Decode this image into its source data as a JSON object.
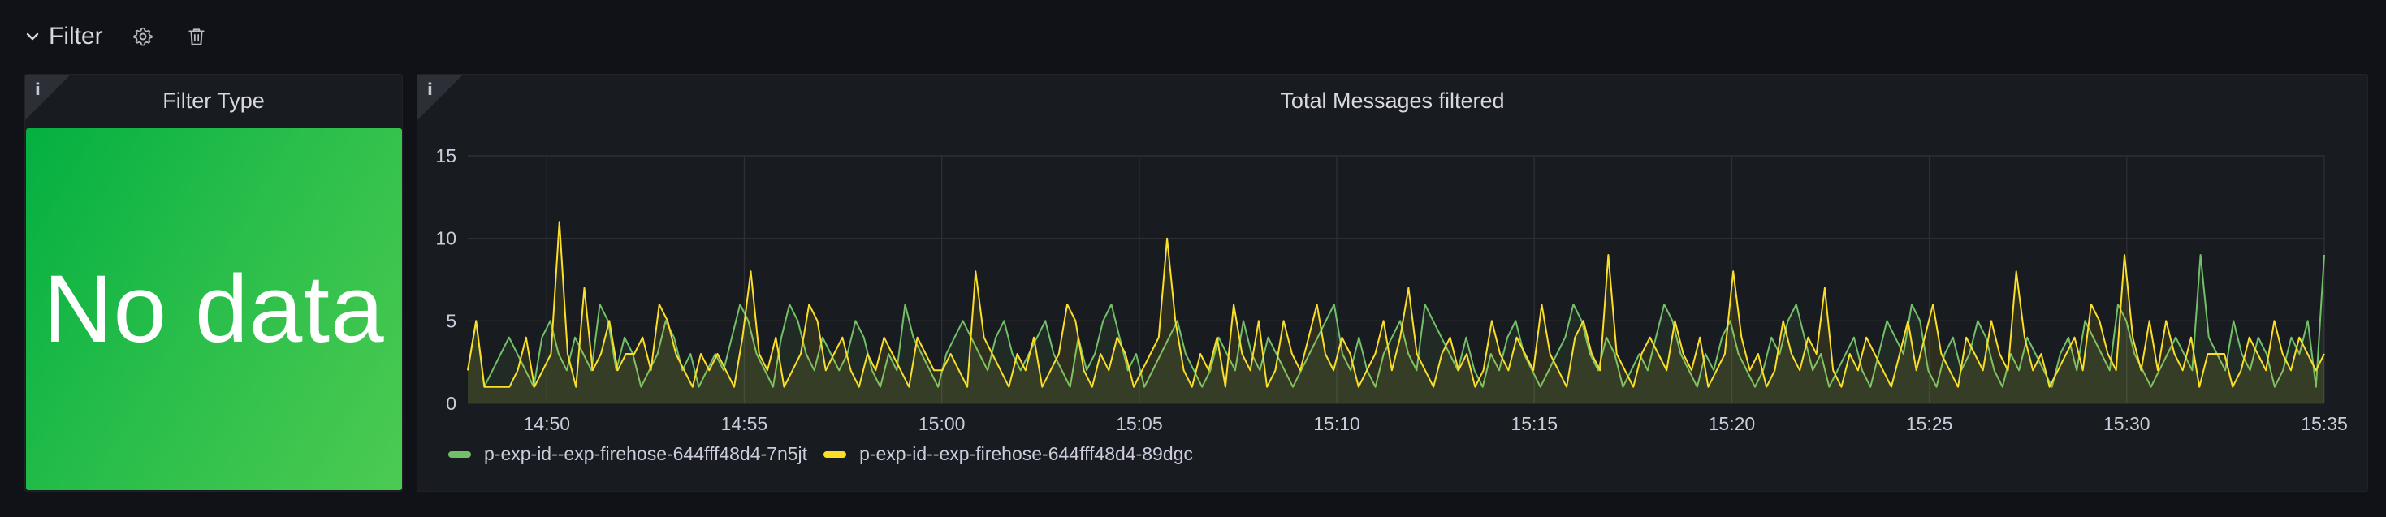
{
  "row": {
    "title": "Filter",
    "actions": [
      "gear-icon",
      "trash-icon"
    ]
  },
  "panels": {
    "filter_type": {
      "title": "Filter Type",
      "info": "i",
      "value": "No data",
      "color": "#37b94a"
    },
    "messages": {
      "title": "Total Messages filtered",
      "info": "i"
    }
  },
  "chart_data": {
    "type": "line",
    "title": "Total Messages filtered",
    "xlabel": "",
    "ylabel": "",
    "ylim": [
      0,
      15
    ],
    "yticks": [
      "0",
      "5",
      "10",
      "15"
    ],
    "xticks": [
      "14:50",
      "14:55",
      "15:00",
      "15:05",
      "15:10",
      "15:15",
      "15:20",
      "15:25",
      "15:30",
      "15:35"
    ],
    "xrange": [
      "14:48",
      "15:35"
    ],
    "grid": true,
    "legend_position": "bottom-left",
    "series": [
      {
        "name": "p-exp-id--exp-firehose-644fff48d4-7n5jt",
        "color": "#73bf69",
        "values": [
          2,
          5,
          1,
          2,
          3,
          4,
          3,
          2,
          1,
          4,
          5,
          3,
          2,
          4,
          3,
          2,
          6,
          5,
          2,
          4,
          3,
          1,
          2,
          3,
          5,
          4,
          2,
          3,
          1,
          2,
          3,
          2,
          4,
          6,
          5,
          3,
          2,
          1,
          4,
          6,
          5,
          3,
          2,
          4,
          3,
          2,
          3,
          5,
          4,
          2,
          1,
          3,
          2,
          6,
          4,
          3,
          2,
          1,
          3,
          4,
          5,
          4,
          3,
          2,
          4,
          5,
          3,
          2,
          3,
          4,
          5,
          3,
          2,
          1,
          4,
          2,
          3,
          5,
          6,
          4,
          2,
          3,
          1,
          2,
          3,
          4,
          5,
          3,
          2,
          1,
          2,
          4,
          3,
          2,
          5,
          3,
          2,
          4,
          3,
          2,
          1,
          2,
          3,
          4,
          5,
          6,
          3,
          2,
          4,
          2,
          1,
          3,
          4,
          5,
          3,
          2,
          6,
          5,
          4,
          3,
          2,
          4,
          2,
          1,
          3,
          2,
          4,
          5,
          3,
          2,
          1,
          2,
          3,
          4,
          6,
          5,
          3,
          2,
          4,
          3,
          1,
          2,
          3,
          2,
          4,
          6,
          5,
          3,
          2,
          1,
          3,
          2,
          4,
          5,
          3,
          2,
          1,
          2,
          4,
          3,
          5,
          6,
          4,
          2,
          3,
          1,
          2,
          3,
          4,
          2,
          1,
          3,
          5,
          4,
          3,
          6,
          5,
          2,
          1,
          3,
          4,
          2,
          3,
          5,
          4,
          2,
          1,
          3,
          2,
          4,
          3,
          2,
          1,
          3,
          4,
          2,
          5,
          4,
          3,
          2,
          6,
          5,
          3,
          2,
          1,
          2,
          3,
          4,
          3,
          2,
          9,
          4,
          3,
          2,
          5,
          3,
          2,
          4,
          3,
          1,
          2,
          4,
          3,
          5,
          1,
          9
        ],
        "note": "approximate"
      },
      {
        "name": "p-exp-id--exp-firehose-644fff48d4-89dgc",
        "color": "#fade2a",
        "values": [
          2,
          5,
          1,
          1,
          1,
          1,
          2,
          4,
          1,
          2,
          3,
          11,
          3,
          1,
          7,
          2,
          3,
          5,
          2,
          3,
          3,
          4,
          2,
          6,
          5,
          3,
          2,
          1,
          3,
          2,
          3,
          2,
          1,
          4,
          8,
          3,
          2,
          4,
          1,
          2,
          3,
          6,
          5,
          2,
          3,
          4,
          2,
          1,
          3,
          2,
          4,
          3,
          2,
          1,
          4,
          3,
          2,
          2,
          3,
          2,
          1,
          8,
          4,
          3,
          2,
          1,
          3,
          2,
          4,
          1,
          2,
          3,
          6,
          5,
          2,
          1,
          3,
          2,
          4,
          3,
          1,
          2,
          3,
          4,
          10,
          5,
          2,
          1,
          3,
          2,
          4,
          1,
          6,
          3,
          2,
          5,
          1,
          2,
          5,
          3,
          2,
          4,
          6,
          3,
          2,
          4,
          3,
          1,
          2,
          3,
          5,
          2,
          4,
          7,
          3,
          2,
          1,
          3,
          4,
          2,
          3,
          1,
          2,
          5,
          3,
          2,
          4,
          3,
          2,
          6,
          3,
          2,
          1,
          4,
          5,
          3,
          2,
          9,
          3,
          2,
          1,
          3,
          4,
          3,
          2,
          5,
          3,
          2,
          4,
          1,
          2,
          3,
          8,
          4,
          2,
          3,
          1,
          2,
          5,
          3,
          2,
          4,
          3,
          7,
          2,
          1,
          3,
          2,
          4,
          3,
          2,
          1,
          3,
          5,
          2,
          4,
          6,
          3,
          2,
          1,
          4,
          3,
          2,
          5,
          3,
          2,
          8,
          4,
          2,
          3,
          1,
          2,
          3,
          4,
          2,
          6,
          5,
          3,
          2,
          9,
          4,
          2,
          5,
          2,
          5,
          3,
          2,
          4,
          1,
          3,
          3,
          3,
          1,
          2,
          4,
          3,
          2,
          5,
          3,
          2,
          4,
          3,
          2,
          3
        ],
        "note": "approximate"
      }
    ]
  }
}
